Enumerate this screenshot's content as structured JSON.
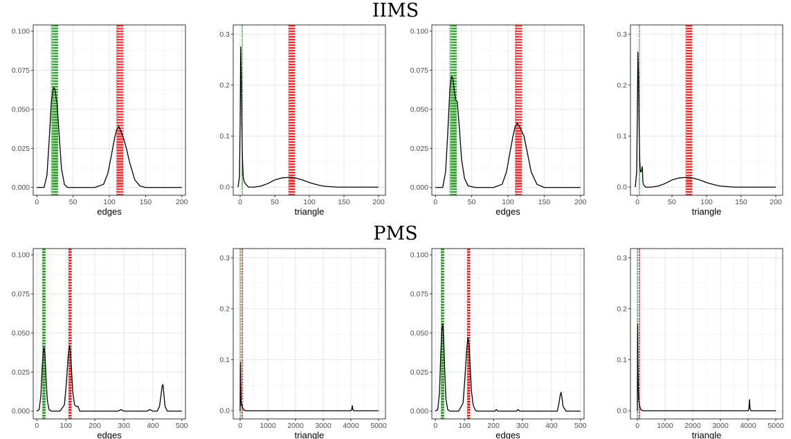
{
  "sections": [
    {
      "title": "IIMS"
    },
    {
      "title": "PMS"
    }
  ],
  "chart_data": [
    {
      "type": "area",
      "section": "IIMS",
      "xlabel": "edges",
      "xlim": [
        -5,
        205
      ],
      "ylim": [
        -0.005,
        0.104
      ],
      "xticks": [
        0,
        50,
        100,
        150,
        200
      ],
      "xtick_labels": [
        "0",
        "50",
        "100",
        "150",
        "200"
      ],
      "yticks": [
        0,
        0.025,
        0.05,
        0.075,
        0.1
      ],
      "ytick_labels": [
        "0.000",
        "0.025",
        "0.050",
        "0.075",
        "0.100"
      ],
      "x": [
        0,
        10,
        14,
        17,
        20,
        23,
        25,
        28,
        31,
        34,
        38,
        42,
        50,
        60,
        80,
        92,
        98,
        103,
        107,
        110,
        113,
        116,
        120,
        124,
        128,
        135,
        142,
        150,
        200
      ],
      "y": [
        0,
        0,
        0.008,
        0.03,
        0.055,
        0.064,
        0.063,
        0.053,
        0.032,
        0.012,
        0.002,
        0,
        0,
        0,
        0,
        0.002,
        0.009,
        0.021,
        0.031,
        0.037,
        0.039,
        0.036,
        0.031,
        0.024,
        0.016,
        0.005,
        0.001,
        0,
        0
      ],
      "green_band": [
        21,
        29
      ],
      "green_obs": 20,
      "red_band": [
        111,
        119
      ],
      "red_obs": 110
    },
    {
      "type": "area",
      "section": "IIMS",
      "xlabel": "triangle",
      "xlim": [
        -10,
        210
      ],
      "ylim": [
        -0.016,
        0.318
      ],
      "xticks": [
        0,
        50,
        100,
        150,
        200
      ],
      "xtick_labels": [
        "0",
        "50",
        "100",
        "150",
        "200"
      ],
      "yticks": [
        0,
        0.1,
        0.2,
        0.3
      ],
      "ytick_labels": [
        "0.0",
        "0.1",
        "0.2",
        "0.3"
      ],
      "x": [
        -3,
        -1,
        0,
        0.8,
        1.6,
        2.5,
        3.5,
        4.5,
        6,
        8,
        12,
        20,
        30,
        40,
        50,
        60,
        70,
        75,
        80,
        90,
        100,
        110,
        120,
        130,
        140,
        160,
        200
      ],
      "y": [
        0,
        0.02,
        0.12,
        0.275,
        0.22,
        0.12,
        0.05,
        0.02,
        0.01,
        0.006,
        0,
        0,
        0.002,
        0.007,
        0.014,
        0.018,
        0.019,
        0.019,
        0.018,
        0.014,
        0.009,
        0.005,
        0.002,
        0.001,
        0,
        0,
        0
      ],
      "green_band": [
        3,
        3
      ],
      "green_obs": 3,
      "red_band": [
        71,
        79
      ],
      "red_obs": 70
    },
    {
      "type": "area",
      "section": "IIMS",
      "xlabel": "edges",
      "xlim": [
        -5,
        205
      ],
      "ylim": [
        -0.005,
        0.104
      ],
      "xticks": [
        0,
        50,
        100,
        150,
        200
      ],
      "xtick_labels": [
        "0",
        "50",
        "100",
        "150",
        "200"
      ],
      "yticks": [
        0,
        0.025,
        0.05,
        0.075,
        0.1
      ],
      "ytick_labels": [
        "0.000",
        "0.025",
        "0.050",
        "0.075",
        "0.100"
      ],
      "x": [
        0,
        10,
        14,
        17,
        20,
        22,
        24,
        26,
        28,
        30,
        33,
        36,
        40,
        45,
        55,
        80,
        92,
        98,
        103,
        107,
        110,
        113,
        116,
        119,
        122,
        126,
        132,
        140,
        150,
        200
      ],
      "y": [
        0,
        0,
        0.01,
        0.035,
        0.064,
        0.071,
        0.07,
        0.062,
        0.056,
        0.055,
        0.038,
        0.018,
        0.006,
        0.001,
        0,
        0,
        0.002,
        0.01,
        0.023,
        0.033,
        0.039,
        0.041,
        0.039,
        0.036,
        0.033,
        0.024,
        0.01,
        0.002,
        0,
        0
      ],
      "green_band": [
        21,
        29
      ],
      "green_obs": 20,
      "red_band": [
        111,
        119
      ],
      "red_obs": 110
    },
    {
      "type": "area",
      "section": "IIMS",
      "xlabel": "triangle",
      "xlim": [
        -10,
        210
      ],
      "ylim": [
        -0.016,
        0.318
      ],
      "xticks": [
        0,
        50,
        100,
        150,
        200
      ],
      "xtick_labels": [
        "0",
        "50",
        "100",
        "150",
        "200"
      ],
      "yticks": [
        0,
        0.1,
        0.2,
        0.3
      ],
      "ytick_labels": [
        "0.0",
        "0.1",
        "0.2",
        "0.3"
      ],
      "x": [
        -3,
        -1,
        0,
        0.8,
        1.6,
        2.5,
        3.5,
        4.5,
        5.5,
        6.5,
        7.2,
        8,
        9,
        12,
        20,
        30,
        40,
        50,
        60,
        70,
        75,
        80,
        90,
        100,
        110,
        120,
        130,
        140,
        160,
        200
      ],
      "y": [
        0,
        0.03,
        0.15,
        0.265,
        0.22,
        0.12,
        0.05,
        0.03,
        0.03,
        0.035,
        0.04,
        0.01,
        0.004,
        0,
        0,
        0.002,
        0.007,
        0.014,
        0.018,
        0.019,
        0.019,
        0.018,
        0.014,
        0.009,
        0.005,
        0.002,
        0.001,
        0,
        0,
        0
      ],
      "green_band": [
        3,
        3
      ],
      "green_obs": 3,
      "red_band": [
        71,
        79
      ],
      "red_obs": 70
    },
    {
      "type": "area",
      "section": "PMS",
      "xlabel": "edges",
      "xlim": [
        -12.5,
        512.5
      ],
      "ylim": [
        -0.005,
        0.104
      ],
      "xticks": [
        0,
        100,
        200,
        300,
        400,
        500
      ],
      "xtick_labels": [
        "0",
        "100",
        "200",
        "300",
        "400",
        "500"
      ],
      "yticks": [
        0,
        0.025,
        0.05,
        0.075,
        0.1
      ],
      "ytick_labels": [
        "0.000",
        "0.025",
        "0.050",
        "0.075",
        "0.100"
      ],
      "x": [
        0,
        8,
        14,
        18,
        22,
        25,
        28,
        32,
        36,
        42,
        50,
        80,
        95,
        102,
        108,
        112,
        116,
        120,
        124,
        130,
        136,
        142,
        148,
        200,
        280,
        290,
        300,
        380,
        390,
        400,
        415,
        423,
        428,
        432,
        435,
        438,
        442,
        450,
        500
      ],
      "y": [
        0,
        0.001,
        0.01,
        0.026,
        0.038,
        0.041,
        0.036,
        0.02,
        0.007,
        0.001,
        0,
        0,
        0.004,
        0.018,
        0.035,
        0.042,
        0.038,
        0.025,
        0.012,
        0.004,
        0.003,
        0.003,
        0,
        0,
        0,
        0.001,
        0,
        0,
        0.001,
        0,
        0,
        0.003,
        0.01,
        0.016,
        0.017,
        0.011,
        0.003,
        0,
        0
      ],
      "green_band": [
        21,
        29
      ],
      "green_obs": 20,
      "red_band": [
        111,
        119
      ],
      "red_obs": 110
    },
    {
      "type": "area",
      "section": "PMS",
      "xlabel": "triangle",
      "xlim": [
        -250,
        5250
      ],
      "ylim": [
        -0.016,
        0.318
      ],
      "xticks": [
        0,
        1000,
        2000,
        3000,
        4000,
        5000
      ],
      "xtick_labels": [
        "0",
        "1000",
        "2000",
        "3000",
        "4000",
        "5000"
      ],
      "yticks": [
        0,
        0.1,
        0.2,
        0.3
      ],
      "ytick_labels": [
        "0.0",
        "0.1",
        "0.2",
        "0.3"
      ],
      "x": [
        0,
        5,
        12,
        20,
        35,
        50,
        70,
        90,
        130,
        200,
        4000,
        4030,
        4050,
        4070,
        4100,
        5000
      ],
      "y": [
        0,
        0.07,
        0.095,
        0.06,
        0.015,
        0.01,
        0.012,
        0.006,
        0.002,
        0,
        0,
        0.002,
        0.01,
        0.003,
        0,
        0
      ],
      "green_band": [
        3,
        3
      ],
      "green_obs": 3,
      "red_band": [
        71,
        79
      ],
      "red_obs": 70
    },
    {
      "type": "area",
      "section": "PMS",
      "xlabel": "edges",
      "xlim": [
        -12.5,
        512.5
      ],
      "ylim": [
        -0.005,
        0.104
      ],
      "xticks": [
        0,
        100,
        200,
        300,
        400,
        500
      ],
      "xtick_labels": [
        "0",
        "100",
        "200",
        "300",
        "400",
        "500"
      ],
      "yticks": [
        0,
        0.025,
        0.05,
        0.075,
        0.1
      ],
      "ytick_labels": [
        "0.000",
        "0.025",
        "0.050",
        "0.075",
        "0.100"
      ],
      "x": [
        0,
        8,
        14,
        18,
        22,
        25,
        28,
        32,
        36,
        42,
        50,
        80,
        95,
        102,
        108,
        112,
        116,
        120,
        124,
        130,
        136,
        142,
        150,
        205,
        210,
        215,
        280,
        285,
        290,
        420,
        425,
        430,
        433,
        436,
        440,
        450,
        500
      ],
      "y": [
        0,
        0.001,
        0.012,
        0.035,
        0.052,
        0.056,
        0.048,
        0.026,
        0.008,
        0.001,
        0,
        0,
        0.005,
        0.022,
        0.04,
        0.047,
        0.042,
        0.028,
        0.013,
        0.004,
        0.001,
        0,
        0,
        0,
        0.001,
        0,
        0,
        0.001,
        0,
        0,
        0.004,
        0.01,
        0.012,
        0.009,
        0.003,
        0,
        0
      ],
      "green_band": [
        21,
        29
      ],
      "green_obs": 20,
      "red_band": [
        111,
        119
      ],
      "red_obs": 110
    },
    {
      "type": "area",
      "section": "PMS",
      "xlabel": "triangle",
      "xlim": [
        -250,
        5250
      ],
      "ylim": [
        -0.016,
        0.318
      ],
      "xticks": [
        0,
        1000,
        2000,
        3000,
        4000,
        5000
      ],
      "xtick_labels": [
        "0",
        "1000",
        "2000",
        "3000",
        "4000",
        "5000"
      ],
      "yticks": [
        0,
        0.1,
        0.2,
        0.3
      ],
      "ytick_labels": [
        "0.0",
        "0.1",
        "0.2",
        "0.3"
      ],
      "x": [
        0,
        5,
        12,
        20,
        35,
        50,
        70,
        90,
        130,
        200,
        4000,
        4030,
        4050,
        4070,
        4100,
        5000
      ],
      "y": [
        0,
        0.12,
        0.17,
        0.1,
        0.04,
        0.02,
        0.015,
        0.008,
        0.002,
        0,
        0,
        0.004,
        0.022,
        0.005,
        0,
        0
      ],
      "green_band": [
        3,
        3
      ],
      "green_obs": 3,
      "red_band": [
        71,
        79
      ],
      "red_obs": 70
    }
  ],
  "colors": {
    "green": "#1a9a1a",
    "red": "#e31a1c",
    "green_fill": "#b7deb0",
    "red_fill": "#f9b7b7",
    "grid_major": "#e5e5e5",
    "grid_minor": "#f2f2f2",
    "frame": "#333333",
    "tick_text": "#4d4d4d"
  }
}
